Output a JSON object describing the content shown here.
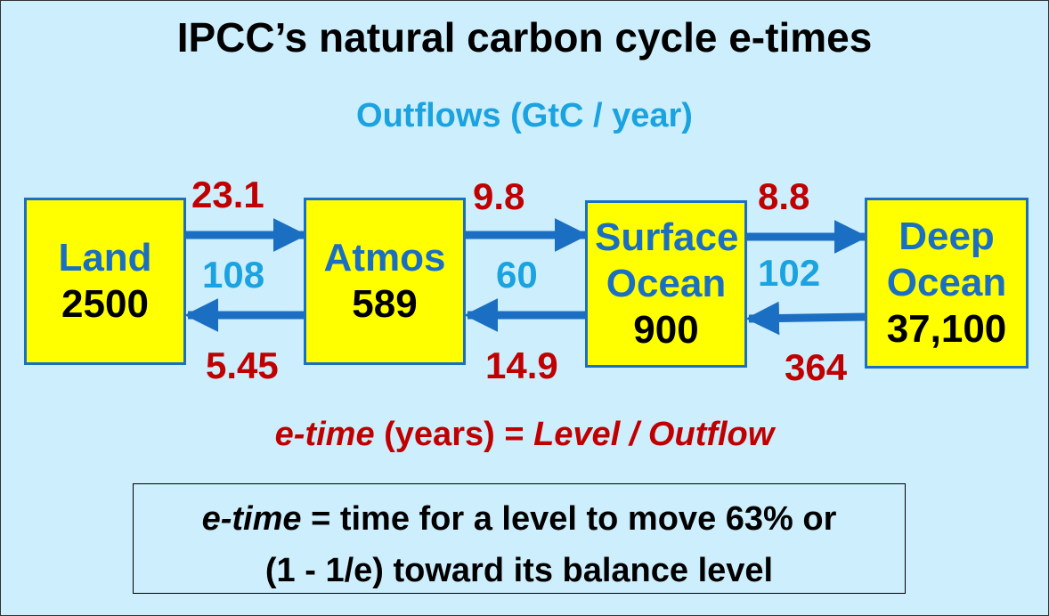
{
  "title": "IPCC’s natural carbon cycle e-times",
  "subtitle": "Outflows (GtC / year)",
  "colors": {
    "background": "#cdeefc",
    "box_fill": "#ffff00",
    "box_border": "#1a6fc2",
    "arrow": "#1a6fc2",
    "red_text": "#c00000",
    "blue_text": "#1aa3e0"
  },
  "reservoirs": [
    {
      "name": "Land",
      "level": "2500"
    },
    {
      "name": "Atmos",
      "level": "589"
    },
    {
      "name": "Surface Ocean",
      "level": "900"
    },
    {
      "name": "Deep Ocean",
      "level": "37,100"
    }
  ],
  "flows": [
    {
      "forward_etime": "23.1",
      "outflow": "108",
      "backward_etime": "5.45"
    },
    {
      "forward_etime": "9.8",
      "outflow": "60",
      "backward_etime": "14.9"
    },
    {
      "forward_etime": "8.8",
      "outflow": "102",
      "backward_etime": "364"
    }
  ],
  "formula": {
    "italic_term": "e-time",
    "middle": " (years) = ",
    "rest": "Level / Outflow"
  },
  "definition": {
    "italic_term": "e-time",
    "line1_rest": " = time for a level to move 63% or",
    "line2": "(1 - 1/e) toward its balance level"
  }
}
